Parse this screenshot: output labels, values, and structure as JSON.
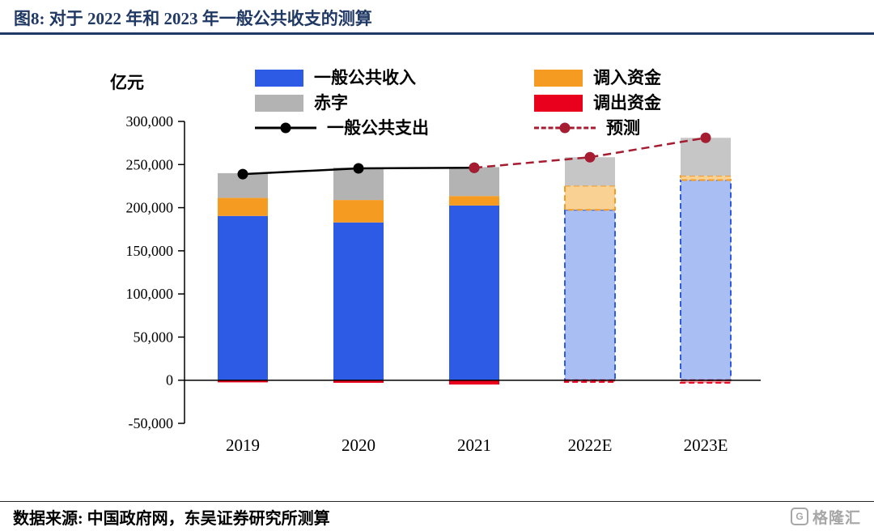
{
  "header": {
    "title": "图8: 对于 2022 年和 2023 年一般公共收支的测算",
    "title_color": "#1F3864",
    "rule_color": "#1F3864"
  },
  "footer": {
    "source": "数据来源: 中国政府网，东吴证券研究所测算",
    "logo": {
      "icon": "G",
      "text": "格隆汇",
      "color": "#A6A6A6"
    }
  },
  "chart_data": {
    "type": "bar",
    "subtype": "stacked-bar-with-lines",
    "unit_label": "亿元",
    "categories": [
      "2019",
      "2020",
      "2021",
      "2022E",
      "2023E"
    ],
    "forecast_categories": [
      "2022E",
      "2023E"
    ],
    "bar_series": [
      {
        "name": "一般公共收入",
        "color": "#2E5BE6",
        "forecast_fill": "#A9BEF2",
        "forecast_dash": true,
        "values": [
          190400,
          182900,
          202500,
          197500,
          232000
        ]
      },
      {
        "name": "调入资金",
        "color": "#F59B22",
        "forecast_fill": "#F8D193",
        "forecast_dash": true,
        "values": [
          21000,
          26000,
          11000,
          28000,
          5000
        ]
      },
      {
        "name": "赤字",
        "color": "#B3B3B3",
        "forecast_fill": "#C6C6C6",
        "forecast_dash": false,
        "values": [
          28600,
          37600,
          33500,
          33000,
          44000
        ]
      },
      {
        "name": "调出资金",
        "color": "#E8001C",
        "forecast_fill": "#F4A0A6",
        "forecast_dash": true,
        "values": [
          -2500,
          -3000,
          -5000,
          -2000,
          -3000
        ]
      }
    ],
    "line_series": [
      {
        "name": "一般公共支出",
        "color": "#000000",
        "dash": "solid",
        "points": [
          [
            "2019",
            238900
          ],
          [
            "2020",
            245600
          ],
          [
            "2021",
            246300
          ]
        ]
      },
      {
        "name": "预测",
        "color": "#A61C30",
        "dash": "dashed",
        "points": [
          [
            "2021",
            246300
          ],
          [
            "2022E",
            258500
          ],
          [
            "2023E",
            281000
          ]
        ]
      }
    ],
    "ylim": [
      -50000,
      300000
    ],
    "ytick_step": 50000,
    "grid": false,
    "legend_position": "top"
  }
}
